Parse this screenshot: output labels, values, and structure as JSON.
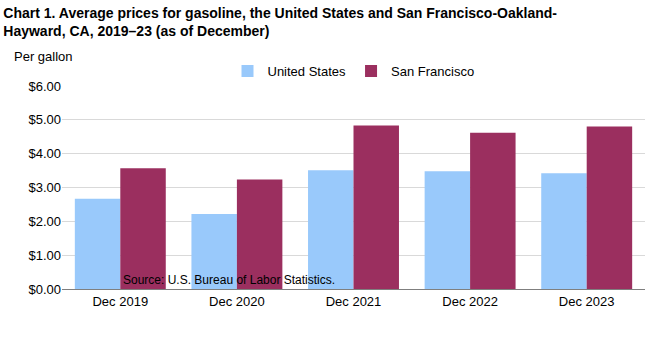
{
  "chart_data": {
    "type": "bar",
    "title": [
      "Chart 1. Average prices for gasoline, the United States and San Francisco-Oakland-",
      "Hayward, CA, 2019–23 (as of December)"
    ],
    "ylabel": "Per gallon",
    "source": "Source: U.S. Bureau of Labor Statistics.",
    "categories": [
      "Dec 2019",
      "Dec 2020",
      "Dec 2021",
      "Dec 2022",
      "Dec 2023"
    ],
    "series": [
      {
        "name": "United States",
        "color": "#99c9fb",
        "values": [
          2.67,
          2.22,
          3.51,
          3.48,
          3.42
        ]
      },
      {
        "name": "San Francisco",
        "color": "#9b2f5f",
        "values": [
          3.57,
          3.24,
          4.83,
          4.62,
          4.8
        ]
      }
    ],
    "ylim": [
      0,
      6
    ],
    "yticks": [
      {
        "value": 0,
        "label": "$0.00"
      },
      {
        "value": 1,
        "label": "$1.00"
      },
      {
        "value": 2,
        "label": "$2.00"
      },
      {
        "value": 3,
        "label": "$3.00"
      },
      {
        "value": 4,
        "label": "$4.00"
      },
      {
        "value": 5,
        "label": "$5.00"
      },
      {
        "value": 6,
        "label": "$6.00"
      }
    ],
    "grid": true,
    "legend": "top"
  }
}
